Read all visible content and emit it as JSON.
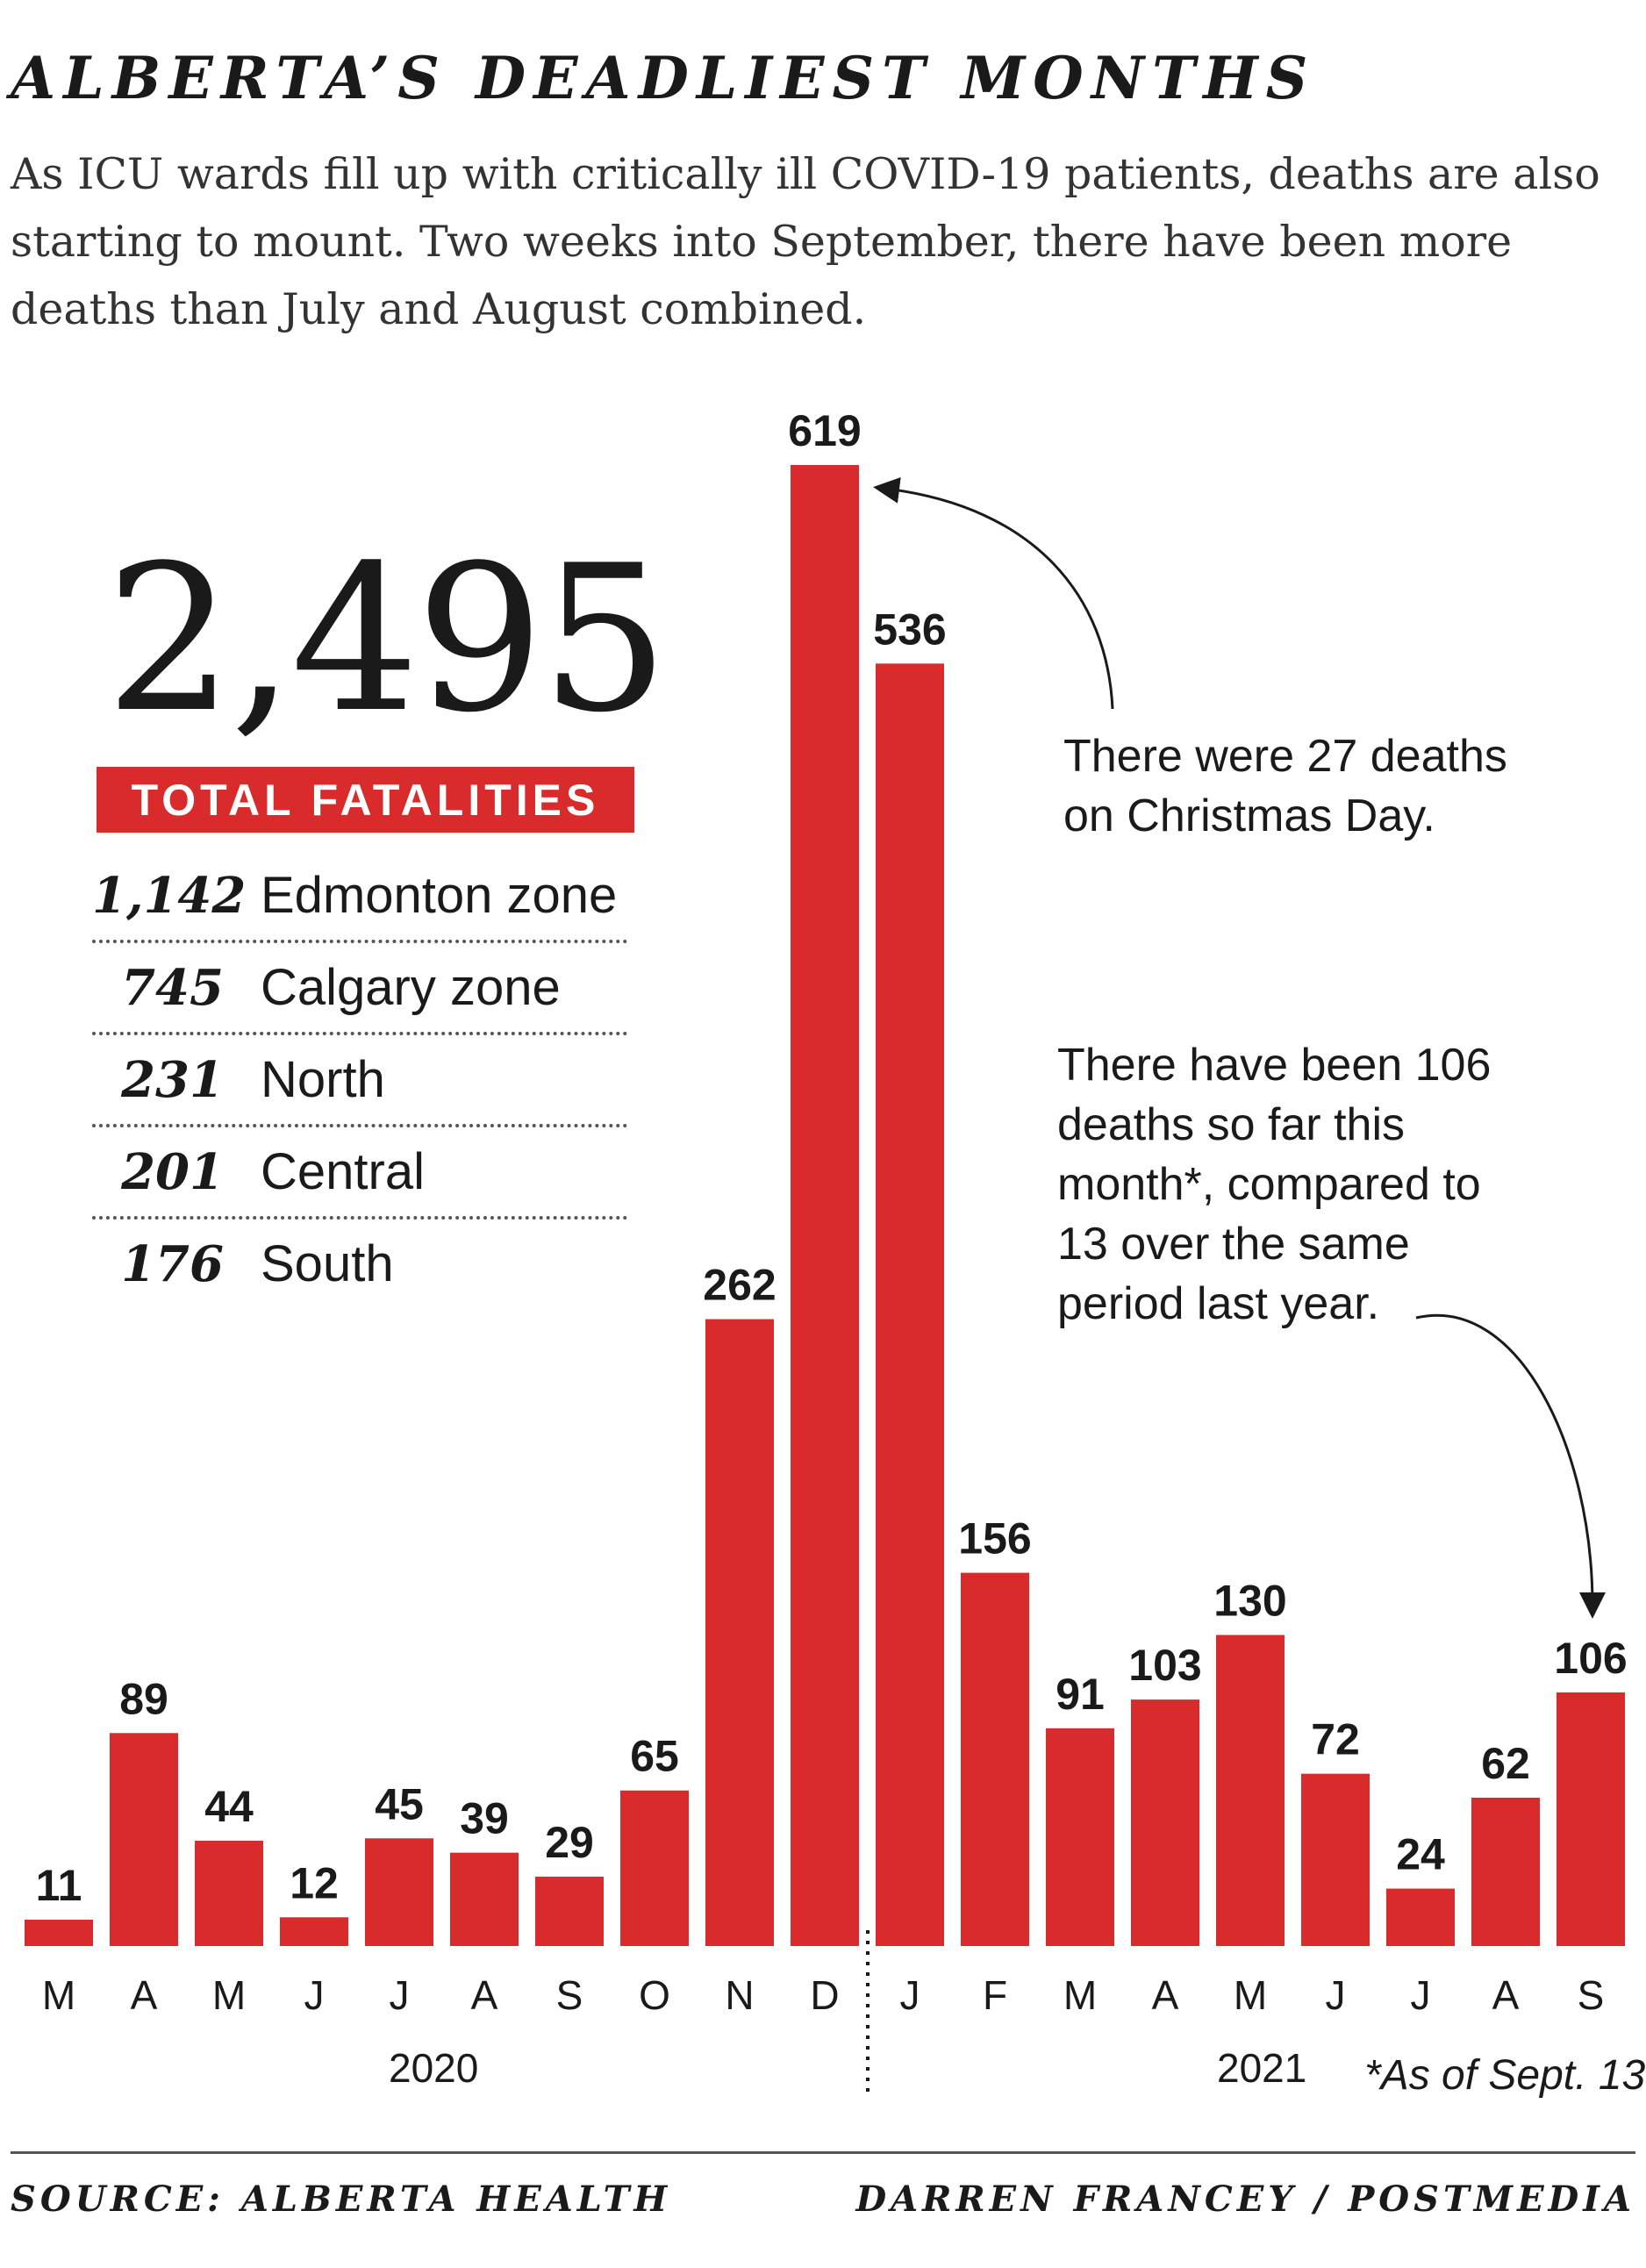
{
  "header": {
    "title": "ALBERTA’S DEADLIEST MONTHS",
    "subtitle": "As ICU wards fill up with critically ill COVID-19 patients, deaths are also starting to mount. Two weeks into September, there have been more deaths than July and August combined."
  },
  "totals": {
    "total_value": "2,495",
    "total_label": "TOTAL FATALITIES",
    "zones": [
      {
        "count": "1,142",
        "name": "Edmonton zone"
      },
      {
        "count": "745",
        "name": "Calgary zone"
      },
      {
        "count": "231",
        "name": "North"
      },
      {
        "count": "201",
        "name": "Central"
      },
      {
        "count": "176",
        "name": "South"
      }
    ]
  },
  "annotations": {
    "christmas": "There were 27 deaths on Christmas Day.",
    "september": "There have been 106 deaths so far this month*, compared to 13 over the same period last year."
  },
  "footnote": "*As of Sept. 13",
  "footer": {
    "source": "SOURCE: ALBERTA HEALTH",
    "credit": "DARREN FRANCEY / POSTMEDIA"
  },
  "colors": {
    "bar": "#d92b2b",
    "banner": "#d92b2b",
    "text": "#1a1a1a"
  },
  "chart_data": {
    "type": "bar",
    "categories": [
      "M",
      "A",
      "M",
      "J",
      "J",
      "A",
      "S",
      "O",
      "N",
      "D",
      "J",
      "F",
      "M",
      "A",
      "M",
      "J",
      "J",
      "A",
      "S"
    ],
    "groups": [
      {
        "label": "2020",
        "count": 10
      },
      {
        "label": "2021",
        "count": 9
      }
    ],
    "series": [
      {
        "values": [
          11,
          89,
          44,
          12,
          45,
          39,
          29,
          65,
          262,
          619,
          536,
          156,
          91,
          103,
          130,
          72,
          24,
          62,
          106
        ]
      }
    ],
    "title": "ALBERTA’S DEADLIEST MONTHS",
    "xlabel": "",
    "ylabel": "",
    "ylim": [
      0,
      619
    ],
    "grid": false,
    "legend": "none"
  }
}
